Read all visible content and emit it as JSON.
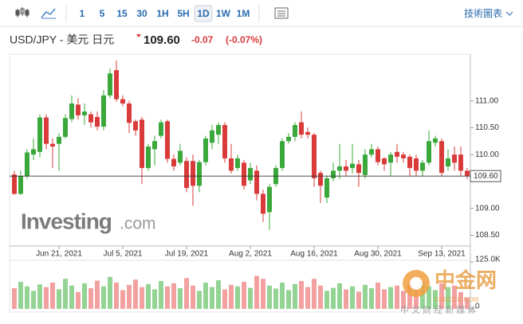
{
  "toolbar": {
    "intervals": [
      "1",
      "5",
      "15",
      "30",
      "1H",
      "5H",
      "1D",
      "1W",
      "1M"
    ],
    "selected": "1D",
    "menu": "技術圖表"
  },
  "header": {
    "title": "USD/JPY - 美元 日元",
    "change": "-0.07",
    "change_pct": "(-0.07%)"
  },
  "watermarks": {
    "brand": "Investing",
    "suffix": ".com",
    "cn_logo": "中金网",
    "cn_site": "CNGOLD.COM",
    "cn_slogan": "中 文 财 经 新 媒 体"
  },
  "chart_data": {
    "type": "candlestick",
    "categories": [
      null,
      null,
      null,
      null,
      null,
      null,
      null,
      "Jun 21, 2021",
      null,
      null,
      null,
      null,
      null,
      null,
      null,
      null,
      null,
      "Jul 5, 2021",
      null,
      null,
      null,
      null,
      null,
      null,
      null,
      null,
      null,
      "Jul 19, 2021",
      null,
      null,
      null,
      null,
      null,
      null,
      null,
      null,
      null,
      "Aug 2, 2021",
      null,
      null,
      null,
      null,
      null,
      null,
      null,
      null,
      null,
      "Aug 16, 2021",
      null,
      null,
      null,
      null,
      null,
      null,
      null,
      null,
      null,
      "Aug 30, 2021",
      null,
      null,
      null,
      null,
      null,
      null,
      null,
      null,
      null,
      "Sep 13, 2021",
      null,
      null,
      null,
      null
    ],
    "open": [
      109.63,
      109.27,
      109.6,
      110.0,
      110.05,
      110.69,
      110.2,
      110.2,
      110.33,
      110.66,
      110.93,
      110.73,
      110.75,
      110.7,
      110.52,
      111.1,
      111.57,
      111.03,
      110.95,
      110.62,
      110.65,
      109.75,
      110.1,
      110.35,
      110.62,
      109.92,
      109.85,
      109.88,
      109.88,
      109.42,
      109.86,
      110.22,
      110.37,
      110.55,
      109.93,
      109.75,
      109.85,
      109.52,
      109.7,
      109.27,
      108.93,
      109.45,
      109.75,
      110.25,
      110.33,
      110.6,
      110.42,
      110.37,
      109.66,
      109.2,
      109.56,
      109.7,
      109.78,
      109.75,
      109.82,
      109.62,
      110.0,
      110.1,
      109.93,
      109.85,
      110.05,
      110.0,
      109.96,
      109.93,
      109.7,
      109.85,
      110.22,
      110.25,
      109.78,
      110.0,
      110.0,
      109.7
    ],
    "high": [
      109.7,
      109.7,
      110.1,
      110.3,
      110.75,
      110.75,
      110.3,
      110.4,
      110.75,
      111.1,
      111.05,
      110.95,
      110.8,
      110.8,
      111.2,
      111.6,
      111.75,
      111.1,
      111.0,
      110.65,
      110.7,
      110.2,
      110.35,
      110.65,
      110.65,
      110.0,
      110.2,
      109.95,
      110.0,
      109.9,
      110.35,
      110.55,
      110.6,
      110.6,
      110.2,
      110.0,
      109.9,
      109.85,
      109.8,
      109.35,
      109.45,
      109.8,
      110.3,
      110.4,
      110.6,
      110.8,
      110.5,
      110.4,
      109.7,
      109.6,
      109.85,
      110.2,
      109.9,
      110.2,
      109.9,
      110.1,
      110.2,
      110.15,
      109.95,
      110.05,
      110.2,
      110.05,
      110.0,
      110.0,
      109.9,
      110.45,
      110.35,
      110.3,
      110.1,
      110.15,
      110.15,
      109.75
    ],
    "low": [
      109.25,
      109.25,
      109.55,
      109.9,
      109.95,
      110.1,
      109.75,
      109.7,
      110.3,
      110.6,
      110.65,
      110.55,
      110.5,
      110.45,
      110.45,
      111.05,
      110.98,
      110.9,
      110.4,
      110.35,
      109.45,
      109.7,
      109.8,
      110.3,
      109.85,
      109.7,
      109.8,
      109.3,
      109.05,
      109.3,
      109.8,
      110.1,
      110.2,
      109.85,
      109.65,
      109.7,
      109.35,
      109.45,
      109.15,
      108.75,
      108.6,
      109.4,
      109.7,
      110.2,
      110.25,
      110.3,
      110.3,
      109.4,
      109.1,
      109.1,
      109.5,
      109.55,
      109.6,
      109.65,
      109.4,
      109.55,
      109.95,
      109.8,
      109.7,
      109.6,
      109.85,
      109.85,
      109.6,
      109.6,
      109.6,
      109.8,
      110.15,
      109.6,
      109.7,
      109.7,
      109.6,
      109.55
    ],
    "close": [
      109.27,
      109.6,
      110.04,
      110.1,
      110.69,
      110.2,
      110.15,
      110.33,
      110.68,
      110.95,
      110.73,
      110.8,
      110.6,
      110.52,
      111.1,
      111.51,
      111.03,
      110.95,
      110.59,
      110.45,
      109.75,
      110.15,
      110.25,
      110.6,
      109.92,
      109.78,
      110.07,
      109.38,
      109.42,
      109.86,
      110.3,
      110.45,
      110.55,
      109.93,
      109.7,
      109.93,
      109.42,
      109.75,
      109.27,
      108.9,
      109.4,
      109.75,
      110.25,
      110.33,
      110.55,
      110.37,
      110.37,
      109.56,
      109.42,
      109.56,
      109.7,
      109.78,
      109.7,
      109.83,
      109.66,
      110.0,
      110.1,
      109.86,
      109.82,
      110.0,
      109.96,
      109.93,
      109.75,
      109.7,
      109.85,
      110.25,
      110.3,
      109.66,
      109.93,
      109.85,
      109.7,
      109.6
    ],
    "volume": [
      55000,
      72000,
      60000,
      48000,
      65000,
      58000,
      70000,
      52000,
      80000,
      62000,
      45000,
      68000,
      55000,
      75000,
      60000,
      85000,
      70000,
      50000,
      64000,
      78000,
      58000,
      66000,
      52000,
      74000,
      60000,
      68000,
      55000,
      82000,
      62000,
      48000,
      70000,
      58000,
      76000,
      52000,
      64000,
      60000,
      72000,
      56000,
      88000,
      80000,
      62000,
      54000,
      70000,
      50000,
      66000,
      74000,
      58000,
      80000,
      62000,
      48000,
      56000,
      68000,
      52000,
      60000,
      46000,
      64000,
      55000,
      70000,
      52000,
      58000,
      62000,
      48000,
      66000,
      54000,
      72000,
      60000,
      50000,
      68000,
      58000,
      62000,
      45000,
      30000
    ],
    "up_color": "#3aa83a",
    "down_color": "#d93b3b",
    "volume_up_color": "#93d393",
    "volume_down_color": "#f2a0a0",
    "ylim": [
      108.3,
      111.75
    ],
    "yticks": [
      {
        "value": 108.5,
        "label": "108.50"
      },
      {
        "value": 109,
        "label": "109.00"
      },
      {
        "value": 110,
        "label": "110.00"
      },
      {
        "value": 110.5,
        "label": "110.50"
      },
      {
        "value": 111,
        "label": "111.00"
      }
    ],
    "last_price": {
      "value": 109.6,
      "label": "109.60"
    },
    "y2lim": [
      0,
      125000
    ],
    "y2ticks": [
      {
        "value": 0,
        "label": "0"
      },
      {
        "value": 125000,
        "label": "125.0K"
      }
    ]
  }
}
